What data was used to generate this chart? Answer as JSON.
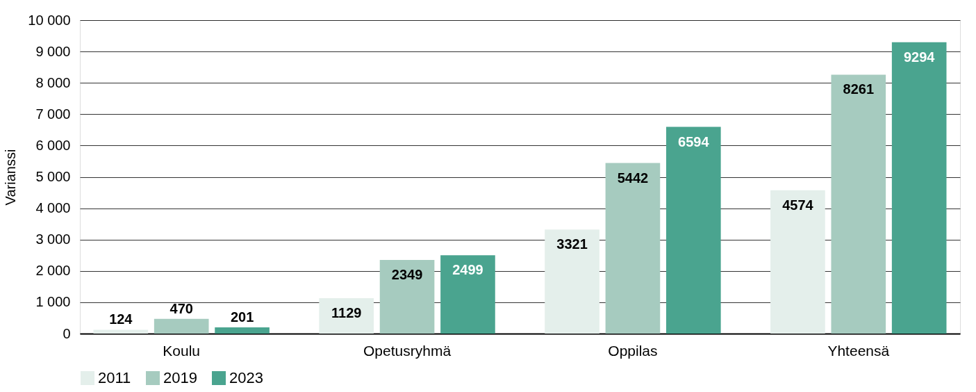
{
  "chart_data": {
    "type": "bar",
    "ylabel": "Varianssi",
    "categories": [
      "Koulu",
      "Opetusryhmä",
      "Oppilas",
      "Yhteensä"
    ],
    "series": [
      {
        "name": "2011",
        "color": "#e4efeb",
        "values": [
          124,
          1129,
          3321,
          4574
        ]
      },
      {
        "name": "2019",
        "color": "#a6cbbf",
        "values": [
          470,
          2349,
          5442,
          8261
        ]
      },
      {
        "name": "2023",
        "color": "#4aa48f",
        "values": [
          201,
          2499,
          6594,
          9294
        ]
      }
    ],
    "ylim": [
      0,
      10000
    ],
    "yticks": [
      0,
      {
        "value": 1000,
        "label": "1 000"
      },
      {
        "value": 2000,
        "label": "2 000"
      },
      {
        "value": 3000,
        "label": "3 000"
      },
      {
        "value": 4000,
        "label": "4 000"
      },
      {
        "value": 5000,
        "label": "5 000"
      },
      {
        "value": 6000,
        "label": "6 000"
      },
      {
        "value": 7000,
        "label": "7 000"
      },
      {
        "value": 8000,
        "label": "8 000"
      },
      {
        "value": 9000,
        "label": "9 000"
      },
      {
        "value": 10000,
        "label": "10 000"
      }
    ],
    "grid": "y",
    "legend": "bottom",
    "data_labels": true
  }
}
